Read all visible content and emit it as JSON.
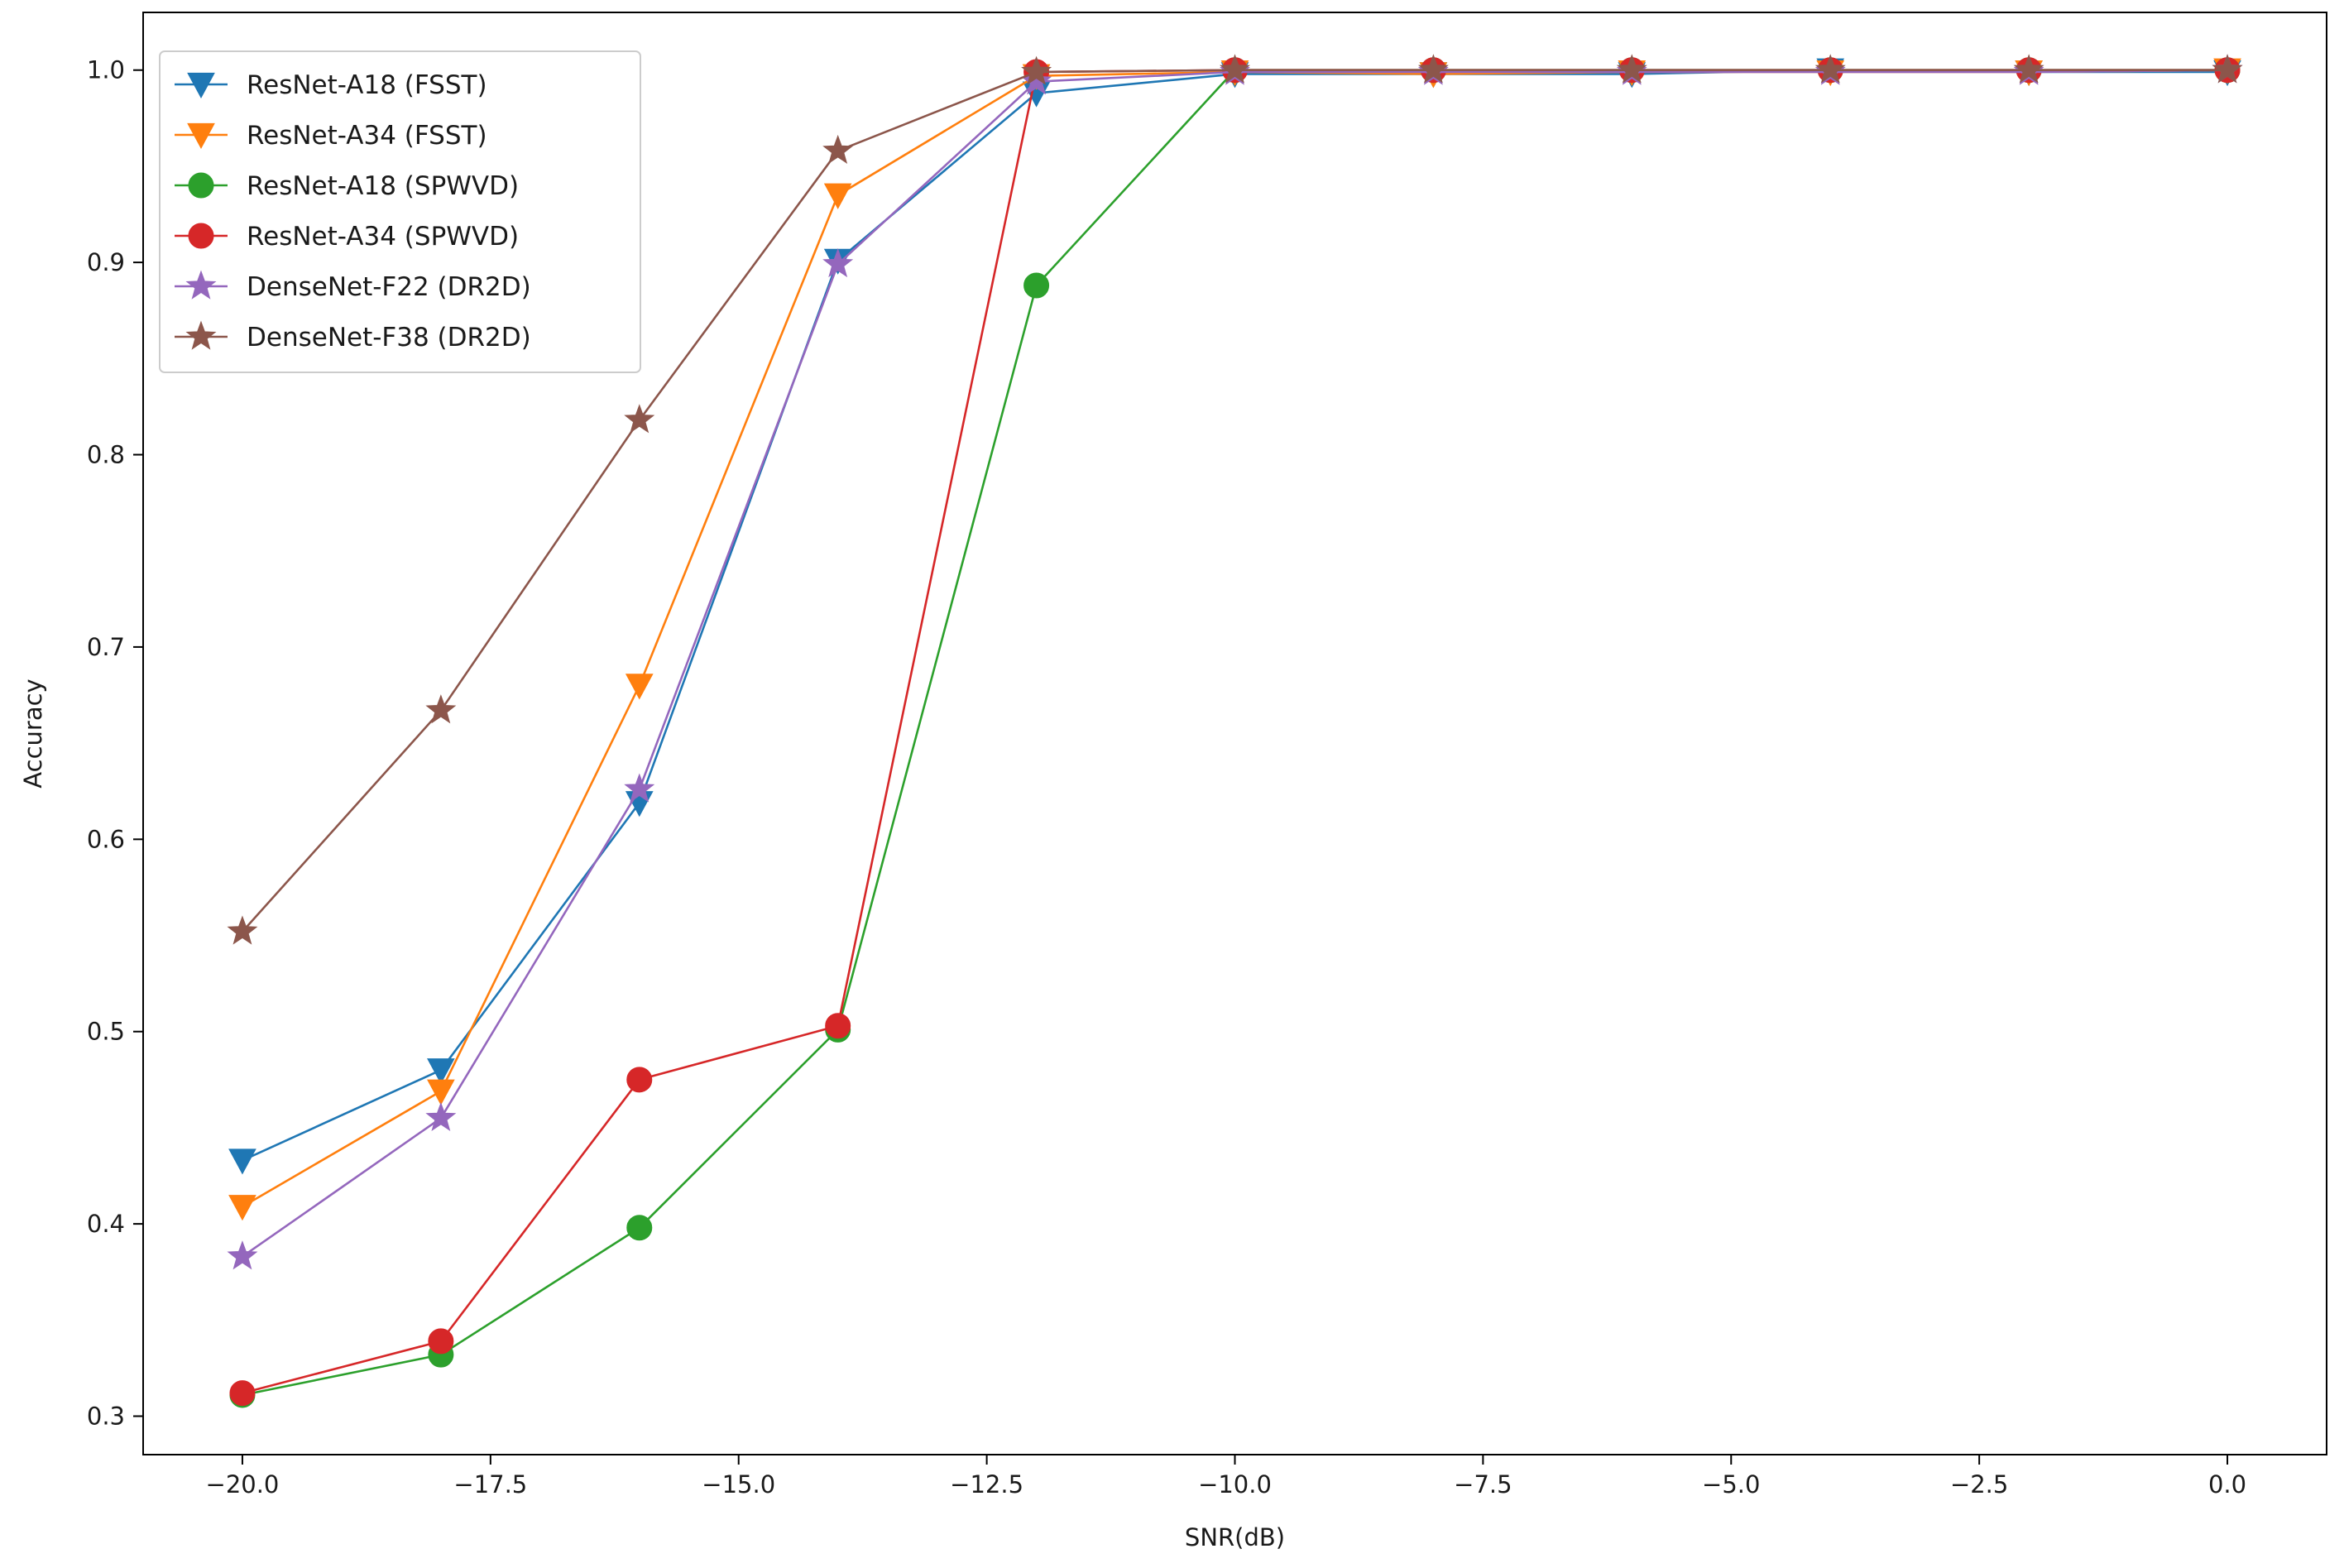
{
  "chart_data": {
    "type": "line",
    "title": "",
    "xlabel": "SNR(dB)",
    "ylabel": "Accuracy",
    "xlim": [
      -21.0,
      1.0
    ],
    "ylim": [
      0.28,
      1.03
    ],
    "xticks": [
      -20.0,
      -17.5,
      -15.0,
      -12.5,
      -10.0,
      -7.5,
      -5.0,
      -2.5,
      0.0
    ],
    "xtick_labels": [
      "−20.0",
      "−17.5",
      "−15.0",
      "−12.5",
      "−10.0",
      "−7.5",
      "−5.0",
      "−2.5",
      "0.0"
    ],
    "yticks": [
      0.3,
      0.4,
      0.5,
      0.6,
      0.7,
      0.8,
      0.9,
      1.0
    ],
    "ytick_labels": [
      "0.3",
      "0.4",
      "0.5",
      "0.6",
      "0.7",
      "0.8",
      "0.9",
      "1.0"
    ],
    "grid": false,
    "legend_position": "top-left",
    "x": [
      -20,
      -18,
      -16,
      -14,
      -12,
      -10,
      -8,
      -6,
      -4,
      -2,
      0
    ],
    "series": [
      {
        "name": "ResNet-A18 (FSST)",
        "color": "#1f77b4",
        "marker": "triangle-down",
        "values": [
          0.433,
          0.48,
          0.619,
          0.901,
          0.988,
          0.998,
          0.998,
          0.998,
          1.0,
          0.999,
          0.999
        ]
      },
      {
        "name": "ResNet-A34 (FSST)",
        "color": "#ff7f0e",
        "marker": "triangle-down",
        "values": [
          0.409,
          0.469,
          0.68,
          0.935,
          0.997,
          0.999,
          0.998,
          0.999,
          0.999,
          0.999,
          1.0
        ]
      },
      {
        "name": "ResNet-A18 (SPWVD)",
        "color": "#2ca02c",
        "marker": "circle",
        "values": [
          0.311,
          0.332,
          0.398,
          0.501,
          0.888,
          1.0,
          1.0,
          1.0,
          1.0,
          1.0,
          1.0
        ]
      },
      {
        "name": "ResNet-A34 (SPWVD)",
        "color": "#d62728",
        "marker": "circle",
        "values": [
          0.312,
          0.339,
          0.475,
          0.503,
          0.999,
          1.0,
          1.0,
          1.0,
          1.0,
          1.0,
          1.0
        ]
      },
      {
        "name": "DenseNet-F22 (DR2D)",
        "color": "#9467bd",
        "marker": "star",
        "values": [
          0.383,
          0.455,
          0.626,
          0.899,
          0.994,
          0.999,
          0.999,
          0.999,
          0.999,
          0.999,
          1.0
        ]
      },
      {
        "name": "DenseNet-F38 (DR2D)",
        "color": "#8c564b",
        "marker": "star",
        "values": [
          0.552,
          0.667,
          0.818,
          0.958,
          0.999,
          1.0,
          1.0,
          1.0,
          1.0,
          1.0,
          1.0
        ]
      }
    ]
  }
}
